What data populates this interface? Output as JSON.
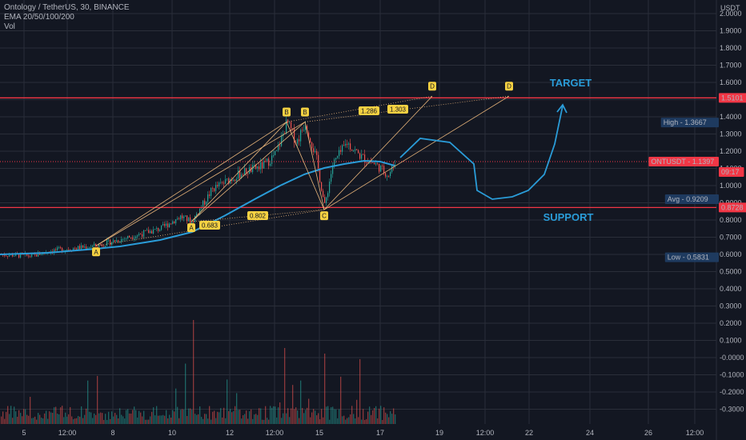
{
  "header": {
    "symbol_line": "Ontology / TetherUS, 30, BINANCE",
    "ema_line": "EMA 20/50/100/200",
    "vol_line": "Vol",
    "currency": "USDT"
  },
  "chart_data": {
    "type": "candlestick",
    "y_axis": {
      "ticks": [
        "2.0000",
        "1.9000",
        "1.8000",
        "1.7000",
        "1.6000",
        "1.5000",
        "1.4000",
        "1.3000",
        "1.2000",
        "1.1000",
        "1.0000",
        "0.9000",
        "0.8000",
        "0.7000",
        "0.6000",
        "0.5000",
        "0.4000",
        "0.3000",
        "0.2000",
        "0.1000",
        "-0.0000",
        "-0.1000",
        "-0.2000",
        "-0.3000"
      ],
      "range": [
        -0.35,
        2.05
      ]
    },
    "x_axis": {
      "ticks": [
        "5",
        "12:00",
        "8",
        "10",
        "12",
        "12:00",
        "15",
        "17",
        "19",
        "12:00",
        "22",
        "24",
        "26",
        "12:00"
      ]
    },
    "price_labels": [
      {
        "text": "1.5101",
        "value": 1.5101,
        "kind": "red"
      },
      {
        "text": "High - 1.3667",
        "value": 1.3667,
        "kind": "navy"
      },
      {
        "text": "ONTUSDT - 1.1397",
        "value": 1.1397,
        "kind": "red"
      },
      {
        "text": "09:17",
        "value": 1.1,
        "kind": "red"
      },
      {
        "text": "Avg - 0.9209",
        "value": 0.9209,
        "kind": "navy"
      },
      {
        "text": "0.8728",
        "value": 0.8728,
        "kind": "red"
      },
      {
        "text": "Low - 0.5831",
        "value": 0.5831,
        "kind": "navy"
      }
    ],
    "horizontal_lines": [
      {
        "value": 1.5101,
        "color": "#f23645",
        "style": "solid"
      },
      {
        "value": 0.8728,
        "color": "#f23645",
        "style": "solid"
      },
      {
        "value": 1.1397,
        "color": "#f23645",
        "style": "dotted"
      }
    ],
    "annotations": [
      {
        "text": "TARGET",
        "color": "#2a9cd8"
      },
      {
        "text": "SUPPORT",
        "color": "#2a9cd8"
      }
    ],
    "pattern_points": [
      {
        "label": "A",
        "x": 120,
        "value": 0.65
      },
      {
        "label": "A",
        "x": 239,
        "value": 0.79
      },
      {
        "label": "B",
        "x": 358,
        "value": 1.37
      },
      {
        "label": "B",
        "x": 381,
        "value": 1.37
      },
      {
        "label": "C",
        "x": 405,
        "value": 0.86
      },
      {
        "label": "D",
        "x": 540,
        "value": 1.52
      },
      {
        "label": "D",
        "x": 636,
        "value": 1.52
      }
    ],
    "ratios": [
      {
        "text": "0.683"
      },
      {
        "text": "0.802"
      },
      {
        "text": "1.286"
      },
      {
        "text": "1.303"
      }
    ],
    "colors": {
      "up": "#26a69a",
      "down": "#ef5350",
      "ema": "#2a9cd8",
      "pattern": "#e8b47a",
      "label": "#f5d142",
      "grid": "#2a2e39",
      "text": "#b2b5be"
    }
  }
}
